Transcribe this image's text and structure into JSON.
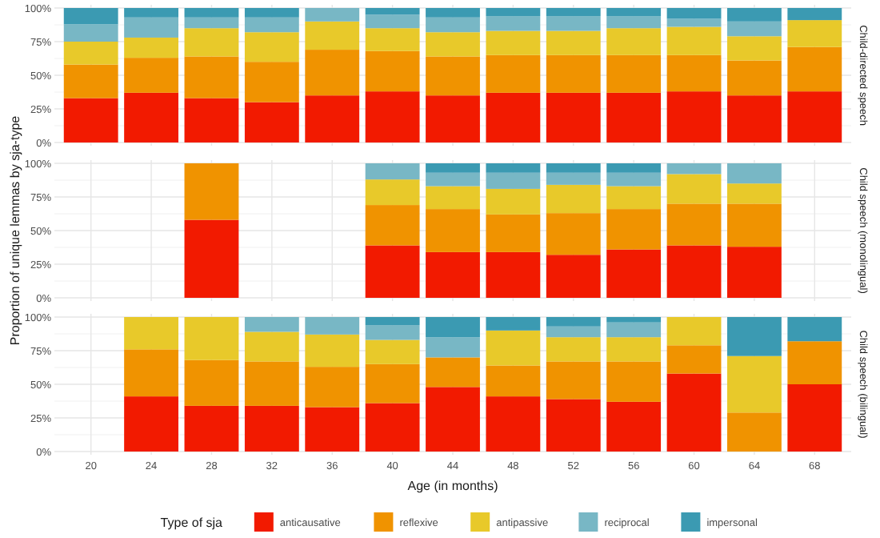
{
  "chart_data": [
    {
      "type": "bar",
      "stacked": true,
      "annotations": [
        "Child-directed speech"
      ],
      "categories": [
        "20",
        "24",
        "28",
        "32",
        "36",
        "40",
        "44",
        "48",
        "52",
        "56",
        "60",
        "64",
        "68"
      ],
      "ylim": [
        0,
        1
      ],
      "yticks": [
        {
          "value": 0,
          "label": "0%"
        },
        {
          "value": 0.25,
          "label": "25%"
        },
        {
          "value": 0.5,
          "label": "50%"
        },
        {
          "value": 0.75,
          "label": "75%"
        },
        {
          "value": 1,
          "label": "100%"
        }
      ],
      "grid": true,
      "tick_labels": "y",
      "series": [
        {
          "color": "#f21a00",
          "values": [
            0.33,
            0.37,
            0.33,
            0.3,
            0.35,
            0.38,
            0.35,
            0.37,
            0.37,
            0.37,
            0.38,
            0.35,
            0.38
          ]
        },
        {
          "color": "#f09300",
          "values": [
            0.25,
            0.26,
            0.31,
            0.3,
            0.34,
            0.3,
            0.29,
            0.28,
            0.28,
            0.28,
            0.27,
            0.26,
            0.33
          ]
        },
        {
          "color": "#e8c92a",
          "values": [
            0.17,
            0.15,
            0.21,
            0.22,
            0.21,
            0.17,
            0.18,
            0.18,
            0.18,
            0.2,
            0.21,
            0.18,
            0.2
          ]
        },
        {
          "color": "#78b7c5",
          "values": [
            0.13,
            0.15,
            0.08,
            0.11,
            0.1,
            0.1,
            0.11,
            0.11,
            0.11,
            0.09,
            0.06,
            0.11,
            0
          ]
        },
        {
          "color": "#3b9ab2",
          "values": [
            0.12,
            0.07,
            0.07,
            0.07,
            0,
            0.05,
            0.07,
            0.06,
            0.06,
            0.06,
            0.08,
            0.1,
            0.09
          ]
        }
      ]
    },
    {
      "type": "bar",
      "stacked": true,
      "annotations": [
        "Child speech (monolingual)"
      ],
      "ylabel": "Proportion of unique lemmas by sja-type",
      "categories": [
        "20",
        "24",
        "28",
        "32",
        "36",
        "40",
        "44",
        "48",
        "52",
        "56",
        "60",
        "64",
        "68"
      ],
      "ylim": [
        0,
        1
      ],
      "yticks": [
        {
          "value": 0,
          "label": "0%"
        },
        {
          "value": 0.25,
          "label": "25%"
        },
        {
          "value": 0.5,
          "label": "50%"
        },
        {
          "value": 0.75,
          "label": "75%"
        },
        {
          "value": 1,
          "label": "100%"
        }
      ],
      "grid": true,
      "tick_labels": "y",
      "series": [
        {
          "color": "#f21a00",
          "values": [
            null,
            null,
            0.58,
            null,
            null,
            0.39,
            0.34,
            0.34,
            0.32,
            0.36,
            0.39,
            0.38,
            null
          ]
        },
        {
          "color": "#f09300",
          "values": [
            null,
            null,
            0.42,
            null,
            null,
            0.3,
            0.32,
            0.28,
            0.31,
            0.3,
            0.31,
            0.32,
            null
          ]
        },
        {
          "color": "#e8c92a",
          "values": [
            null,
            null,
            0,
            null,
            null,
            0.19,
            0.17,
            0.19,
            0.21,
            0.17,
            0.22,
            0.15,
            null
          ]
        },
        {
          "color": "#78b7c5",
          "values": [
            null,
            null,
            0,
            null,
            null,
            0.12,
            0.1,
            0.12,
            0.09,
            0.1,
            0.08,
            0.15,
            null
          ]
        },
        {
          "color": "#3b9ab2",
          "values": [
            null,
            null,
            0,
            null,
            null,
            0,
            0.07,
            0.07,
            0.07,
            0.07,
            0,
            0,
            null
          ]
        }
      ]
    },
    {
      "type": "bar",
      "stacked": true,
      "annotations": [
        "Child speech (bilingual)"
      ],
      "xlabel": "Age (in months)",
      "legend_title": "Type of sja",
      "legend": "bottom",
      "categories": [
        "20",
        "24",
        "28",
        "32",
        "36",
        "40",
        "44",
        "48",
        "52",
        "56",
        "60",
        "64",
        "68"
      ],
      "ylim": [
        0,
        1
      ],
      "yticks": [
        {
          "value": 0,
          "label": "0%"
        },
        {
          "value": 0.25,
          "label": "25%"
        },
        {
          "value": 0.5,
          "label": "50%"
        },
        {
          "value": 0.75,
          "label": "75%"
        },
        {
          "value": 1,
          "label": "100%"
        }
      ],
      "grid": true,
      "series": [
        {
          "name": "anticausative",
          "color": "#f21a00",
          "values": [
            null,
            0.41,
            0.34,
            0.34,
            0.33,
            0.36,
            0.48,
            0.41,
            0.39,
            0.37,
            0.58,
            0,
            0.5
          ]
        },
        {
          "name": "reflexive",
          "color": "#f09300",
          "values": [
            null,
            0.35,
            0.34,
            0.33,
            0.3,
            0.29,
            0.22,
            0.23,
            0.28,
            0.3,
            0.21,
            0.29,
            0.32
          ]
        },
        {
          "name": "antipassive",
          "color": "#e8c92a",
          "values": [
            null,
            0.24,
            0.32,
            0.22,
            0.24,
            0.18,
            0,
            0.26,
            0.18,
            0.18,
            0.21,
            0.42,
            0
          ]
        },
        {
          "name": "reciprocal",
          "color": "#78b7c5",
          "values": [
            null,
            0,
            0,
            0.11,
            0.13,
            0.11,
            0.15,
            0,
            0.08,
            0.11,
            0,
            0,
            0
          ]
        },
        {
          "name": "impersonal",
          "color": "#3b9ab2",
          "values": [
            null,
            0,
            0,
            0,
            0,
            0.06,
            0.15,
            0.1,
            0.07,
            0.04,
            0,
            0.29,
            0.18
          ]
        }
      ]
    }
  ]
}
